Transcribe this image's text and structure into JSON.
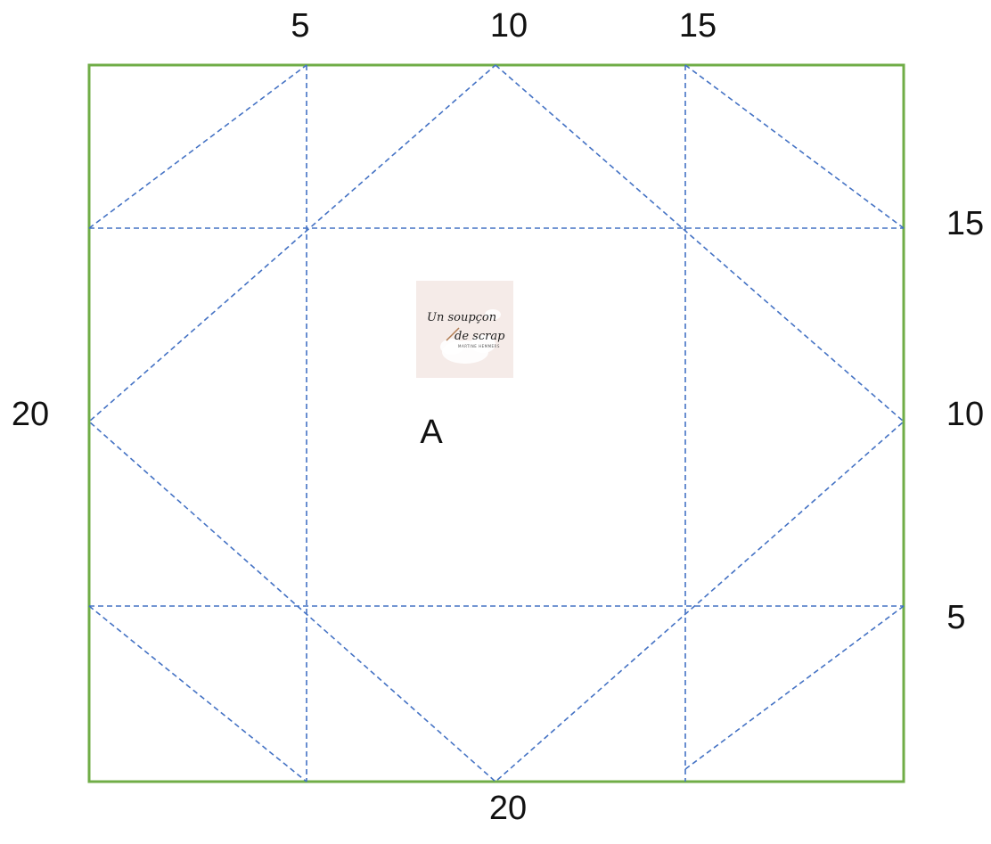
{
  "diagram": {
    "top_marks": [
      "5",
      "10",
      "15"
    ],
    "right_marks": [
      "15",
      "10",
      "5"
    ],
    "left_label": "20",
    "bottom_label": "20",
    "center_label": "A",
    "logo": {
      "line1": "Un soupçon",
      "line2": "de scrap",
      "line3": "MARTINE HEMMERS"
    }
  },
  "colors": {
    "border": "#70ad47",
    "fold_lines": "#4472c4",
    "logo_background": "#f5ebe8"
  },
  "icons": {
    "logo": "un-soupcon-de-scrap-logo"
  }
}
